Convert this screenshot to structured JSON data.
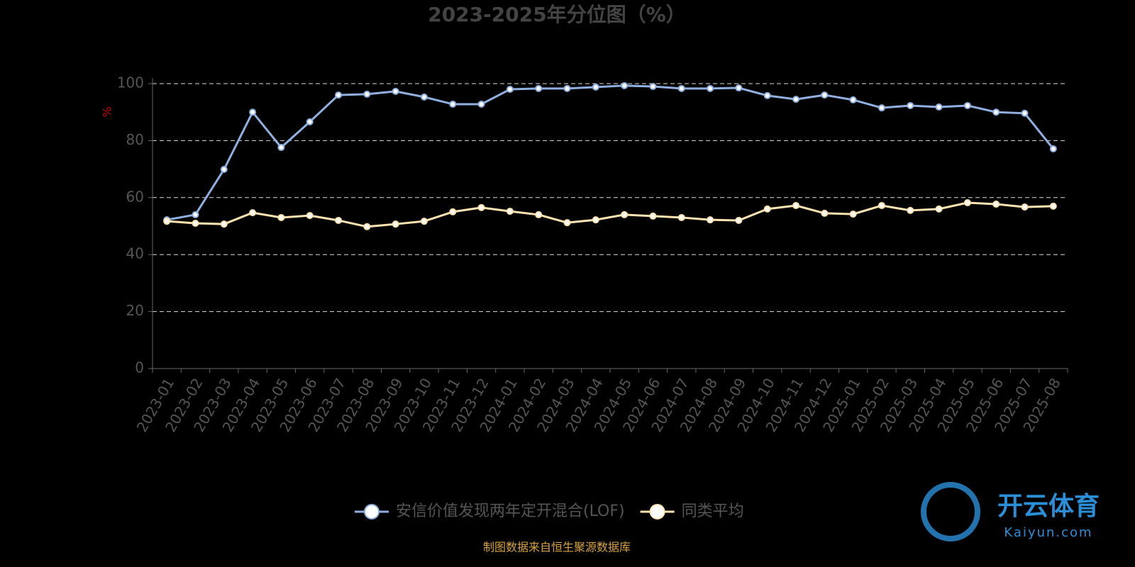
{
  "chart_data": {
    "type": "line",
    "title": "2023-2025年分位图（%）",
    "y_label": "%",
    "categories": [
      "2023-01",
      "2023-02",
      "2023-03",
      "2023-04",
      "2023-05",
      "2023-06",
      "2023-07",
      "2023-08",
      "2023-09",
      "2023-10",
      "2023-11",
      "2023-12",
      "2024-01",
      "2024-02",
      "2024-03",
      "2024-04",
      "2024-05",
      "2024-06",
      "2024-07",
      "2024-08",
      "2024-09",
      "2024-10",
      "2024-11",
      "2024-12",
      "2025-01",
      "2025-02",
      "2025-03",
      "2025-04",
      "2025-05",
      "2025-06",
      "2025-07",
      "2025-08"
    ],
    "series": [
      {
        "name": "安信价值发现两年定开混合(LOF)",
        "color": "#8fb0e0",
        "values": [
          52.2,
          54.0,
          69.9,
          90.0,
          77.6,
          86.6,
          96.0,
          96.3,
          97.3,
          95.3,
          92.8,
          92.8,
          98.0,
          98.3,
          98.3,
          98.8,
          99.3,
          99.0,
          98.3,
          98.3,
          98.5,
          95.8,
          94.5,
          96.0,
          94.3,
          91.5,
          92.3,
          91.8,
          92.3,
          90.0,
          89.6,
          77.1
        ]
      },
      {
        "name": "同类平均",
        "color": "#fde3b0",
        "values": [
          51.7,
          51.0,
          50.7,
          54.7,
          53.0,
          53.7,
          52.0,
          49.8,
          50.7,
          51.7,
          55.0,
          56.5,
          55.2,
          54.0,
          51.2,
          52.2,
          54.0,
          53.5,
          53.0,
          52.2,
          52.0,
          56.0,
          57.2,
          54.5,
          54.2,
          57.2,
          55.5,
          56.0,
          58.2,
          57.7,
          56.7,
          57.0
        ]
      }
    ],
    "ylim": [
      0,
      100
    ],
    "yticks": [
      0,
      20,
      40,
      60,
      80,
      100
    ],
    "grid": true,
    "source": "制图数据来自恒生聚源数据库",
    "watermark": {
      "brand": "开云体育",
      "site": "Kaiyun.com"
    }
  }
}
